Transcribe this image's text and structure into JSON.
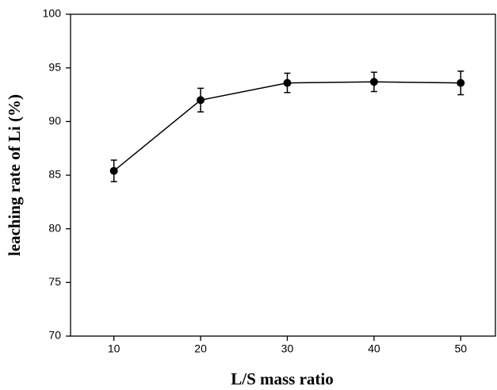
{
  "chart_data": {
    "type": "line",
    "x_label": "L/S mass ratio",
    "y_label": "leaching rate of Li (%)",
    "x": [
      10,
      20,
      30,
      40,
      50
    ],
    "values": [
      85.4,
      92.0,
      93.6,
      93.7,
      93.6
    ],
    "errors": [
      1.0,
      1.1,
      0.9,
      0.9,
      1.1
    ],
    "color": "#000000",
    "xlim": [
      5,
      54
    ],
    "xticks": [
      10,
      20,
      30,
      40,
      50
    ],
    "ylim": [
      70,
      100
    ],
    "yticks": [
      70,
      75,
      80,
      85,
      90,
      95,
      100
    ],
    "grid": false
  }
}
